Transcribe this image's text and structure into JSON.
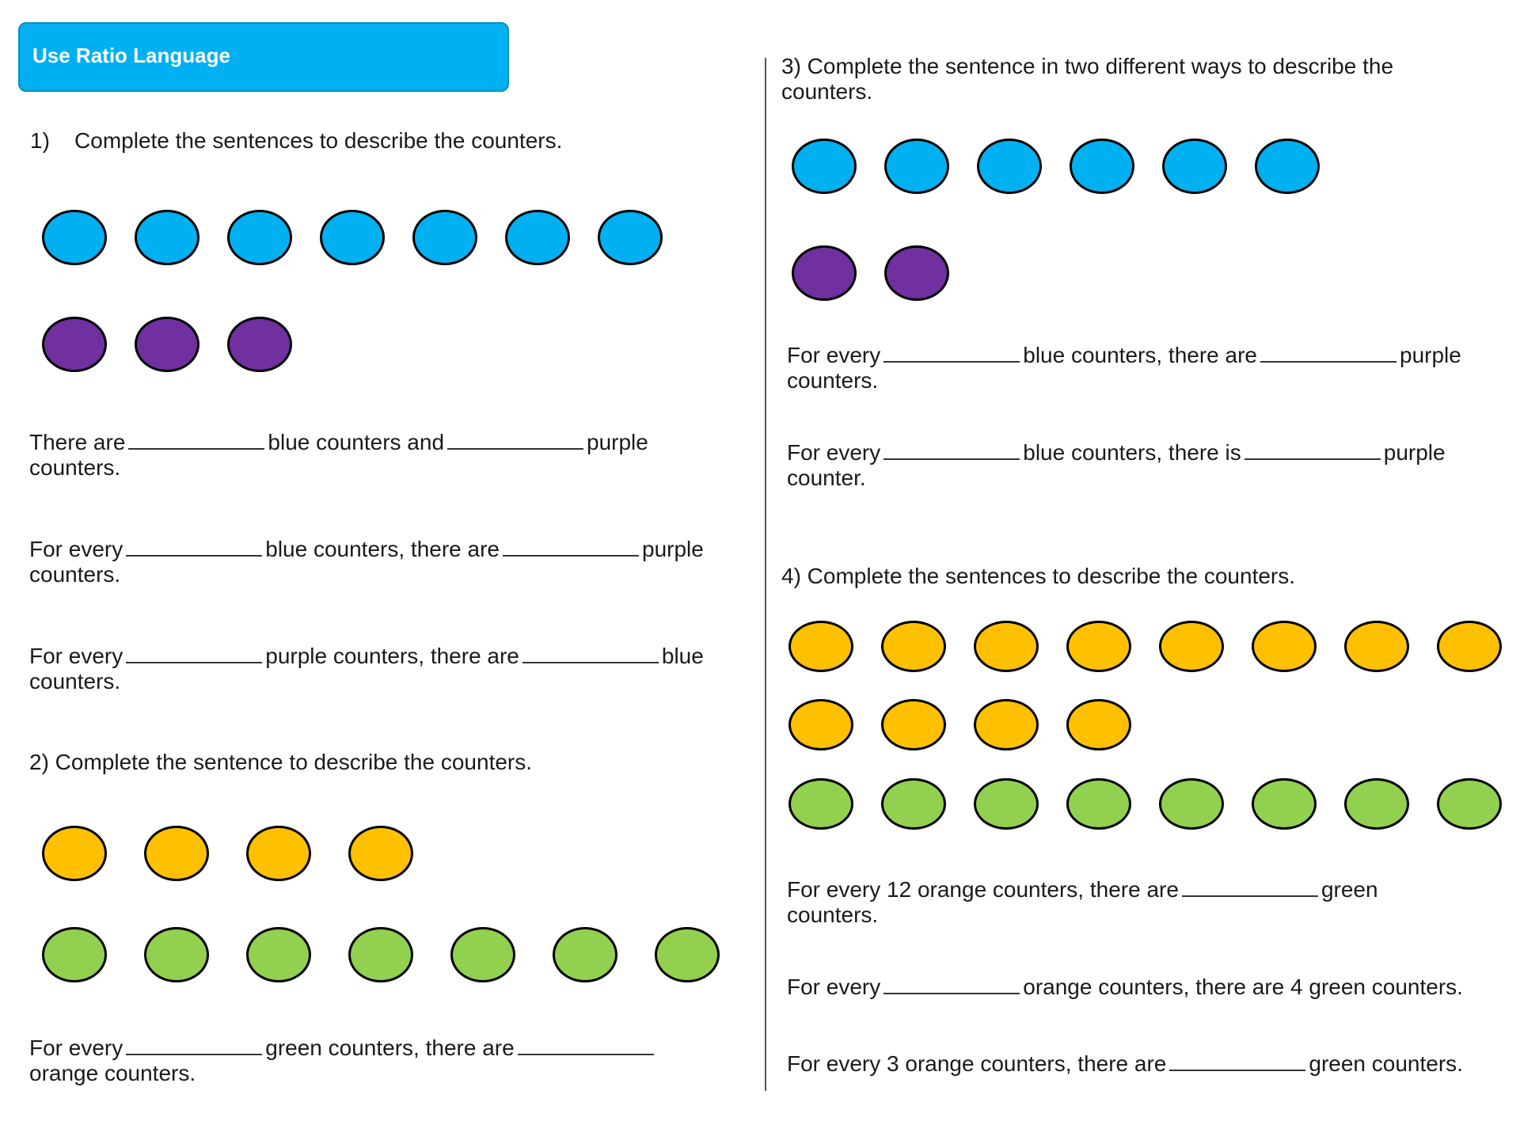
{
  "title": "Use Ratio Language",
  "colors": {
    "blue": "#00b0f0",
    "purple": "#7030a0",
    "orange": "#ffc000",
    "green": "#92d050"
  },
  "q1": {
    "number": "1)",
    "prompt": "Complete the sentences to describe the counters.",
    "counters": {
      "blue": 7,
      "purple": 3
    },
    "s1": {
      "a": "There are",
      "b": "blue counters and",
      "c": "purple",
      "d": "counters."
    },
    "s2": {
      "a": "For every",
      "b": "blue counters, there are",
      "c": "purple",
      "d": "counters."
    },
    "s3": {
      "a": "For every",
      "b": "purple counters, there are",
      "c": "blue",
      "d": "counters."
    }
  },
  "q2": {
    "prompt": "2) Complete the sentence to describe the counters.",
    "counters": {
      "orange": 4,
      "green": 7
    },
    "s1": {
      "a": "For every",
      "b": "green counters, there are",
      "d": "orange counters."
    }
  },
  "q3": {
    "prompt_line1": "3) Complete the sentence in two different ways to describe the",
    "prompt_line2": "counters.",
    "counters": {
      "blue": 6,
      "purple": 2
    },
    "s1": {
      "a": "For every",
      "b": "blue counters, there are",
      "c": "purple",
      "d": "counters."
    },
    "s2": {
      "a": "For every",
      "b": "blue counters, there is",
      "c": "purple",
      "d": "counter."
    }
  },
  "q4": {
    "prompt": "4) Complete the sentences to describe the counters.",
    "counters": {
      "orange": 12,
      "green": 8
    },
    "s1": {
      "a": "For every 12 orange counters, there are",
      "c": "green",
      "d": "counters."
    },
    "s2": {
      "a": "For every",
      "b": "orange counters, there are 4 green counters."
    },
    "s3": {
      "a": "For every 3 orange counters, there are",
      "b": "green counters."
    }
  }
}
